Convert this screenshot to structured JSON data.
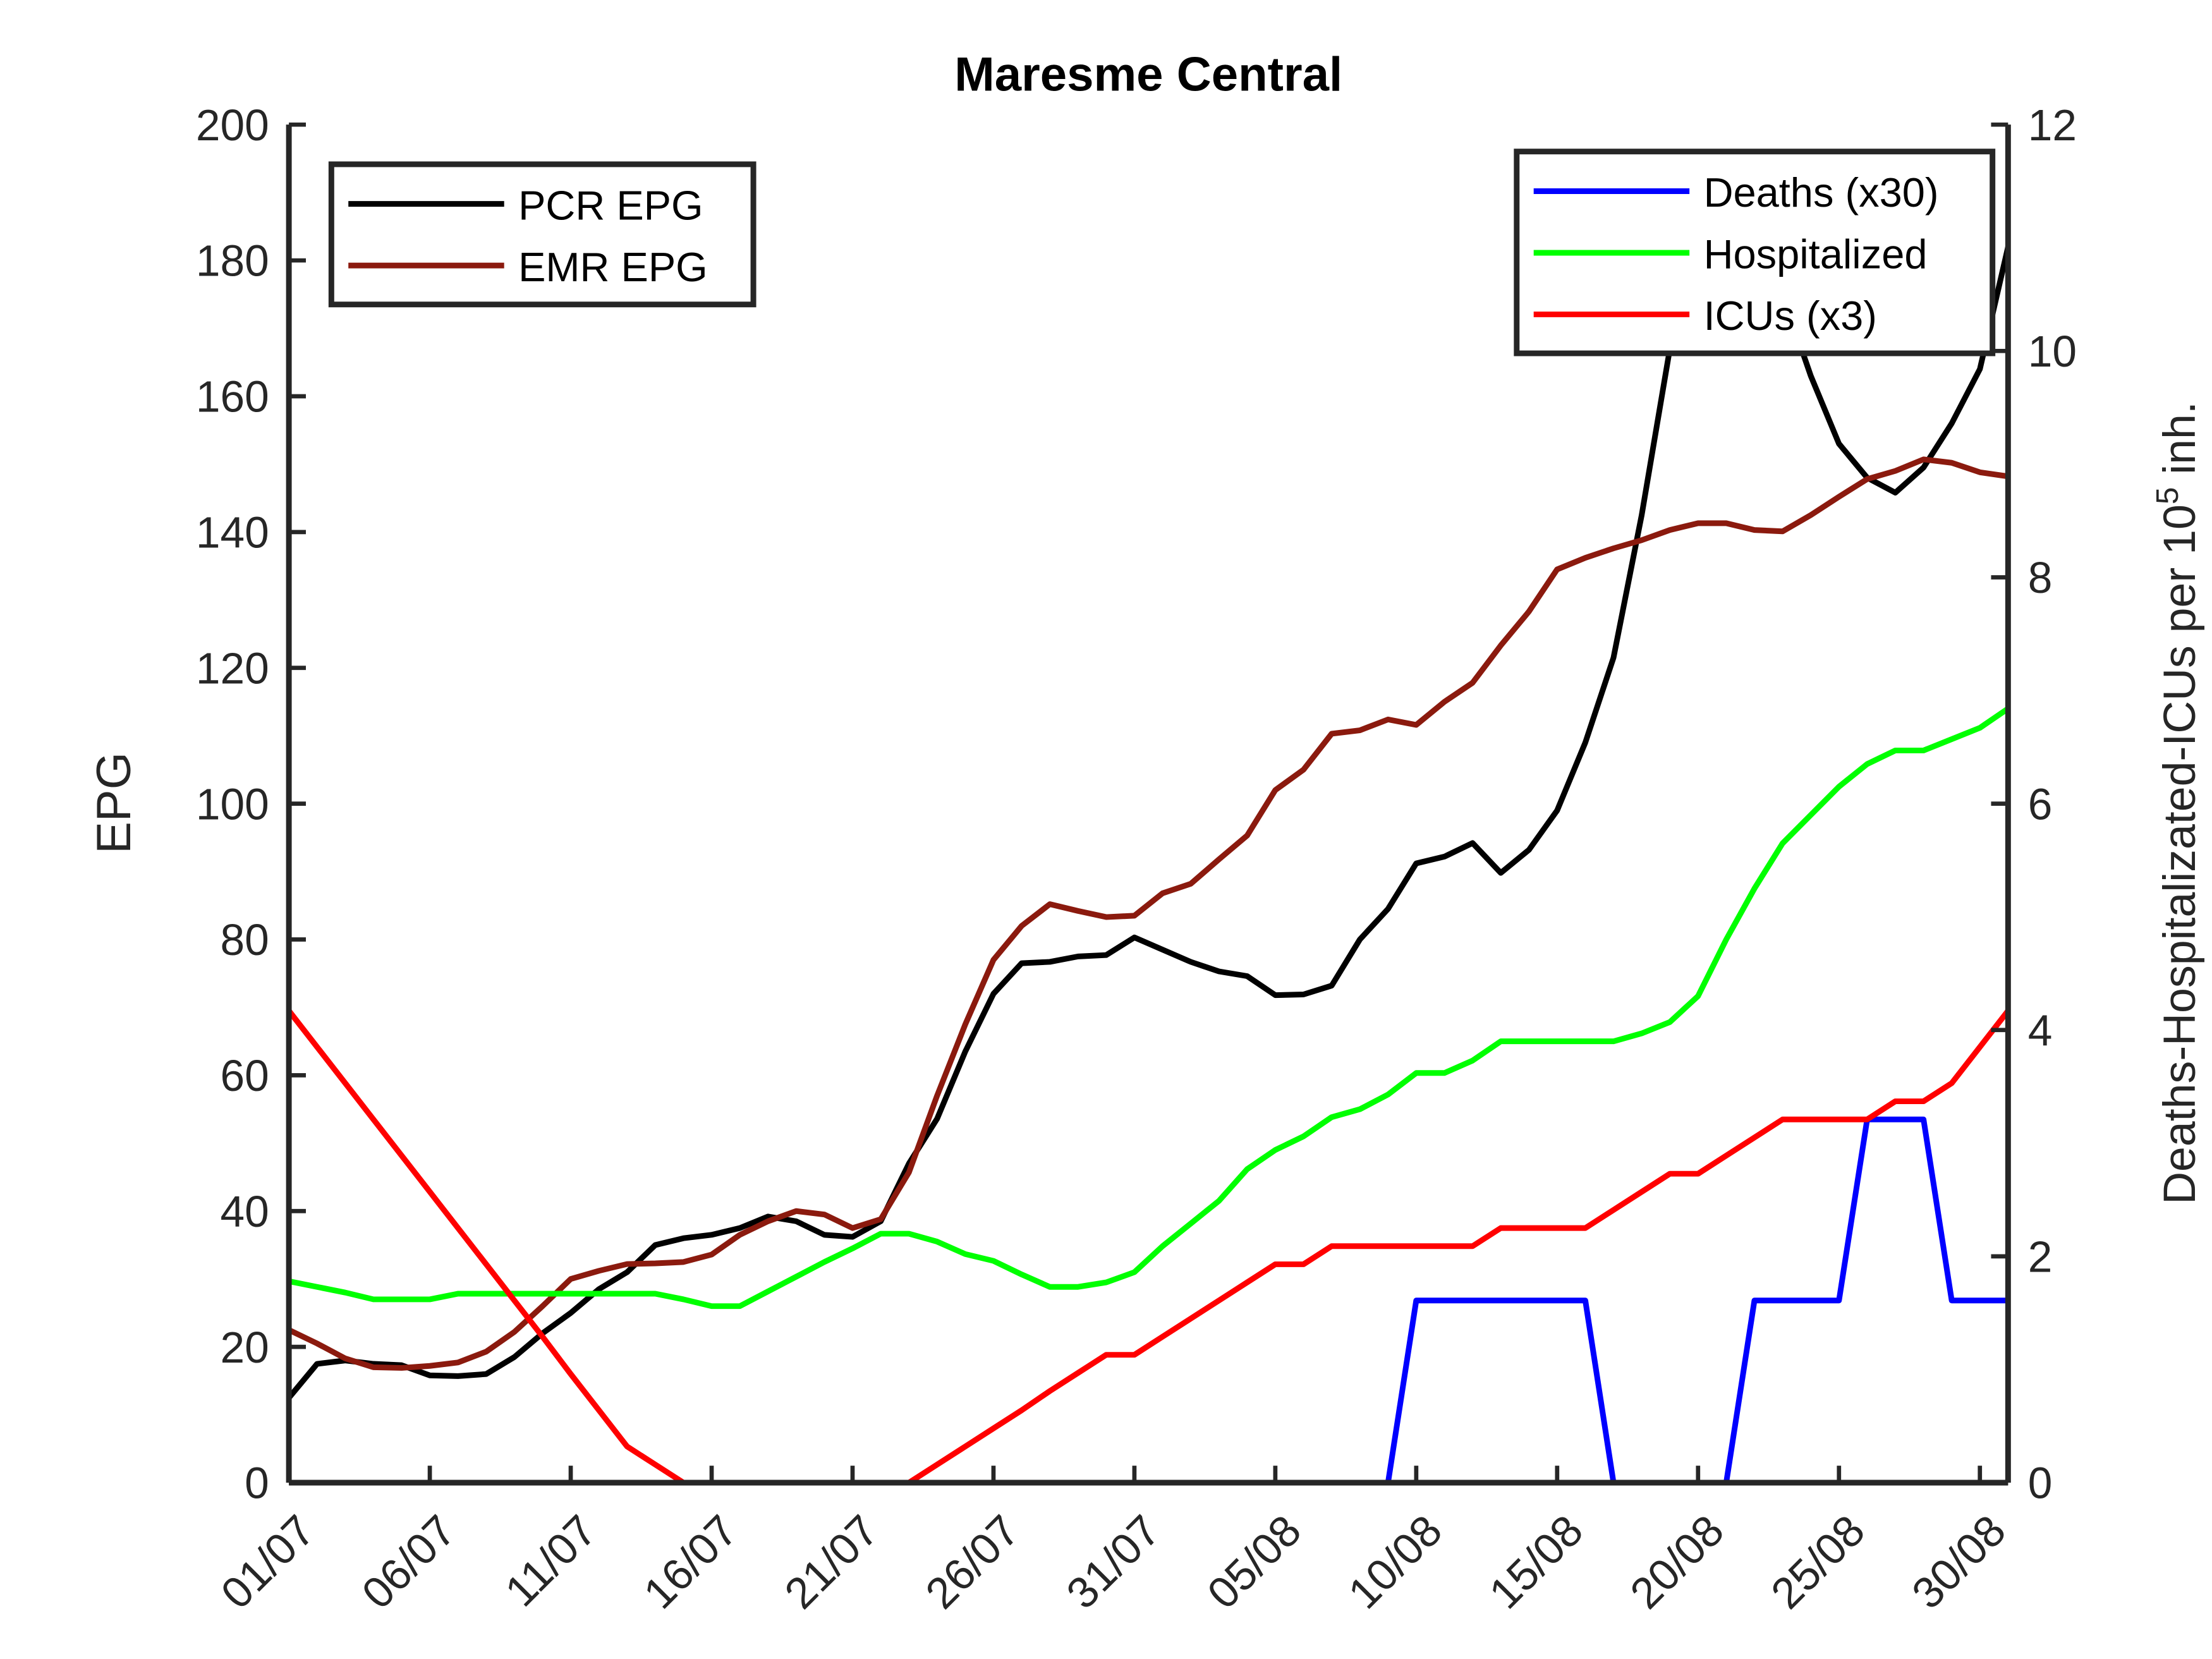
{
  "chart_data": {
    "type": "line",
    "title": "Maresme Central",
    "ylabel": "EPG",
    "y2label": {
      "text": "Deaths-Hospitalizated-ICUs per 10",
      "sup": "5",
      "tail": " inh."
    },
    "categories": [
      "01/07",
      null,
      null,
      null,
      null,
      "06/07",
      null,
      null,
      null,
      null,
      "11/07",
      null,
      null,
      null,
      null,
      "16/07",
      null,
      null,
      null,
      null,
      "21/07",
      null,
      null,
      null,
      null,
      "26/07",
      null,
      null,
      null,
      null,
      "31/07",
      null,
      null,
      null,
      null,
      "05/08",
      null,
      null,
      null,
      null,
      "10/08",
      null,
      null,
      null,
      null,
      "15/08",
      null,
      null,
      null,
      null,
      "20/08",
      null,
      null,
      null,
      null,
      "25/08",
      null,
      null,
      null,
      null,
      "30/08",
      null
    ],
    "ylim": [
      0,
      200
    ],
    "yticks": [
      0,
      20,
      40,
      60,
      80,
      100,
      120,
      140,
      160,
      180,
      200
    ],
    "y2lim": [
      0,
      12
    ],
    "y2ticks": [
      0,
      2,
      4,
      6,
      8,
      10,
      12
    ],
    "legend_loc": "upper left",
    "y2_legend_loc": "upper right",
    "series": [
      {
        "name": "PCR EPG",
        "color": "#000000",
        "values": [
          12.5,
          17.5,
          18,
          17.5,
          17.3,
          15.8,
          15.7,
          16,
          18.5,
          22,
          25,
          28.5,
          31,
          35,
          36,
          36.5,
          37.5,
          39.2,
          38.5,
          36.5,
          36.2,
          38.5,
          47,
          53.6,
          63.5,
          72,
          76.5,
          76.7,
          77.5,
          77.7,
          80.3,
          78.5,
          76.7,
          75.3,
          74.6,
          71.8,
          71.9,
          73.2,
          80,
          84.5,
          91.2,
          92.2,
          94.2,
          89.8,
          93.2,
          99,
          109,
          121.5,
          142.5,
          167,
          188,
          190,
          185,
          175,
          163,
          153,
          148,
          145.8,
          149.5,
          156,
          164,
          182
        ]
      },
      {
        "name": "EMR EPG",
        "color": "#8b1a0e",
        "values": [
          22.5,
          20.5,
          18.3,
          17,
          16.9,
          17.2,
          17.7,
          19.3,
          22.2,
          26,
          30,
          31.2,
          32.2,
          32.3,
          32.5,
          33.6,
          36.5,
          38.5,
          40,
          39.5,
          37.5,
          38.8,
          45.7,
          57,
          67.5,
          77,
          82,
          85.2,
          84.2,
          83.3,
          83.5,
          86.8,
          88.2,
          91.8,
          95.3,
          102,
          105,
          110.3,
          110.8,
          112.4,
          111.6,
          115,
          117.8,
          123.3,
          128.3,
          134.5,
          136.2,
          137.6,
          138.8,
          140.3,
          141.3,
          141.3,
          140.3,
          140.1,
          142.5,
          145.2,
          147.8,
          149,
          150.7,
          150.2,
          148.8,
          148.2
        ]
      },
      {
        "name": "Deaths (x30)",
        "color": "#0000ff",
        "axis": "y2",
        "values": [
          0,
          0,
          0,
          0,
          0,
          0,
          0,
          0,
          0,
          0,
          0,
          0,
          0,
          0,
          0,
          0,
          0,
          0,
          0,
          0,
          0,
          0,
          0,
          0,
          0,
          0,
          0,
          0,
          0,
          0,
          0,
          0,
          0,
          0,
          0,
          0,
          0,
          0,
          0,
          0,
          1.61,
          1.61,
          1.61,
          1.61,
          1.61,
          1.61,
          1.61,
          0,
          0,
          0,
          0,
          0,
          1.61,
          1.61,
          1.61,
          1.61,
          3.21,
          3.21,
          3.21,
          1.61,
          1.61,
          1.61
        ]
      },
      {
        "name": "Hospitalized",
        "color": "#00ff00",
        "axis": "y2",
        "values": [
          1.78,
          1.73,
          1.68,
          1.62,
          1.62,
          1.62,
          1.67,
          1.67,
          1.67,
          1.67,
          1.67,
          1.67,
          1.67,
          1.67,
          1.62,
          1.56,
          1.56,
          1.69,
          1.82,
          1.95,
          2.07,
          2.2,
          2.2,
          2.13,
          2.02,
          1.96,
          1.84,
          1.73,
          1.73,
          1.77,
          1.86,
          2.09,
          2.29,
          2.49,
          2.77,
          2.94,
          3.06,
          3.23,
          3.3,
          3.43,
          3.62,
          3.62,
          3.73,
          3.9,
          3.9,
          3.9,
          3.9,
          3.9,
          3.97,
          4.07,
          4.3,
          4.8,
          5.25,
          5.65,
          5.9,
          6.15,
          6.35,
          6.47,
          6.47,
          6.57,
          6.67,
          6.84
        ]
      },
      {
        "name": "ICUs (x3)",
        "color": "#ff0000",
        "axis": "y2",
        "values": [
          4.17,
          3.85,
          3.53,
          3.21,
          2.89,
          2.57,
          2.25,
          1.93,
          1.61,
          1.29,
          0.96,
          0.64,
          0.32,
          0.16,
          0,
          0,
          0,
          0,
          0,
          0,
          0,
          0,
          0,
          0.16,
          0.32,
          0.48,
          0.64,
          0.81,
          0.97,
          1.13,
          1.13,
          1.29,
          1.45,
          1.61,
          1.77,
          1.93,
          1.93,
          2.09,
          2.09,
          2.09,
          2.09,
          2.09,
          2.09,
          2.25,
          2.25,
          2.25,
          2.25,
          2.41,
          2.57,
          2.73,
          2.73,
          2.89,
          3.05,
          3.21,
          3.21,
          3.21,
          3.21,
          3.37,
          3.37,
          3.53,
          3.85,
          4.17
        ]
      }
    ]
  }
}
